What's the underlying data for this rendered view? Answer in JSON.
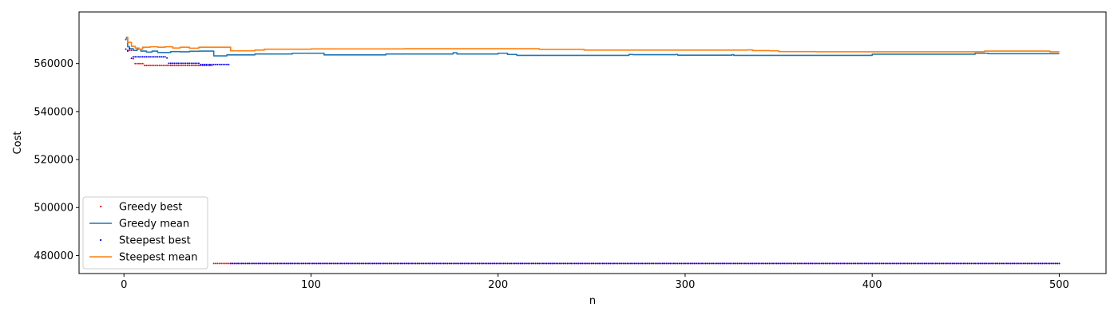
{
  "chart_data": {
    "type": "line",
    "title": "",
    "xlabel": "n",
    "ylabel": "Cost",
    "xlim": [
      -24,
      525
    ],
    "ylim": [
      472500,
      581500
    ],
    "xticks": [
      0,
      100,
      200,
      300,
      400,
      500
    ],
    "yticks": [
      480000,
      500000,
      520000,
      540000,
      560000
    ],
    "grid": false,
    "legend_position": "lower-left",
    "series": [
      {
        "name": "Greedy best",
        "kind": "scatter",
        "color": "#ff0000",
        "segments": [
          {
            "x_from": 1,
            "x_to": 1,
            "value": 570000
          },
          {
            "x_from": 2,
            "x_to": 4,
            "value": 565500
          },
          {
            "x_from": 5,
            "x_to": 5,
            "value": 562000
          },
          {
            "x_from": 6,
            "x_to": 10,
            "value": 560000
          },
          {
            "x_from": 11,
            "x_to": 47,
            "value": 559200
          },
          {
            "x_from": 48,
            "x_to": 500,
            "value": 476700
          }
        ]
      },
      {
        "name": "Greedy mean",
        "kind": "line",
        "color": "#1f77b4",
        "points": [
          [
            1,
            570500
          ],
          [
            2,
            567000
          ],
          [
            3,
            566200
          ],
          [
            5,
            565500
          ],
          [
            7,
            566000
          ],
          [
            9,
            565200
          ],
          [
            12,
            564800
          ],
          [
            15,
            565200
          ],
          [
            18,
            564600
          ],
          [
            22,
            564600
          ],
          [
            25,
            565000
          ],
          [
            30,
            564900
          ],
          [
            35,
            565100
          ],
          [
            40,
            565200
          ],
          [
            47,
            565200
          ],
          [
            48,
            563200
          ],
          [
            55,
            563600
          ],
          [
            70,
            564000
          ],
          [
            90,
            564300
          ],
          [
            104,
            564300
          ],
          [
            107,
            563600
          ],
          [
            140,
            564000
          ],
          [
            176,
            564500
          ],
          [
            178,
            564000
          ],
          [
            200,
            564300
          ],
          [
            205,
            563800
          ],
          [
            210,
            563400
          ],
          [
            270,
            563800
          ],
          [
            272,
            563700
          ],
          [
            295,
            563800
          ],
          [
            296,
            563500
          ],
          [
            325,
            563700
          ],
          [
            326,
            563400
          ],
          [
            400,
            563900
          ],
          [
            455,
            564300
          ],
          [
            462,
            564100
          ],
          [
            500,
            564100
          ]
        ]
      },
      {
        "name": "Steepest best",
        "kind": "scatter",
        "color": "#0000ff",
        "segments": [
          {
            "x_from": 1,
            "x_to": 1,
            "value": 566000
          },
          {
            "x_from": 2,
            "x_to": 2,
            "value": 565200
          },
          {
            "x_from": 3,
            "x_to": 3,
            "value": 566200
          },
          {
            "x_from": 4,
            "x_to": 4,
            "value": 562200
          },
          {
            "x_from": 5,
            "x_to": 22,
            "value": 562800
          },
          {
            "x_from": 23,
            "x_to": 23,
            "value": 562300
          },
          {
            "x_from": 24,
            "x_to": 40,
            "value": 560100
          },
          {
            "x_from": 41,
            "x_to": 56,
            "value": 559600
          },
          {
            "x_from": 57,
            "x_to": 500,
            "value": 476700
          }
        ]
      },
      {
        "name": "Steepest mean",
        "kind": "line",
        "color": "#ff7f0e",
        "points": [
          [
            1,
            571000
          ],
          [
            2,
            568800
          ],
          [
            4,
            567200
          ],
          [
            6,
            566500
          ],
          [
            8,
            566000
          ],
          [
            10,
            566800
          ],
          [
            14,
            567000
          ],
          [
            18,
            566800
          ],
          [
            22,
            567000
          ],
          [
            26,
            566500
          ],
          [
            30,
            566800
          ],
          [
            35,
            566400
          ],
          [
            40,
            566800
          ],
          [
            56,
            566800
          ],
          [
            57,
            565300
          ],
          [
            70,
            565600
          ],
          [
            75,
            566000
          ],
          [
            100,
            566100
          ],
          [
            150,
            566200
          ],
          [
            220,
            566200
          ],
          [
            222,
            565900
          ],
          [
            245,
            565900
          ],
          [
            246,
            565600
          ],
          [
            333,
            565700
          ],
          [
            336,
            565400
          ],
          [
            345,
            565300
          ],
          [
            350,
            565000
          ],
          [
            370,
            564900
          ],
          [
            400,
            564900
          ],
          [
            460,
            565200
          ],
          [
            490,
            565200
          ],
          [
            495,
            564900
          ],
          [
            500,
            564900
          ]
        ]
      }
    ]
  }
}
